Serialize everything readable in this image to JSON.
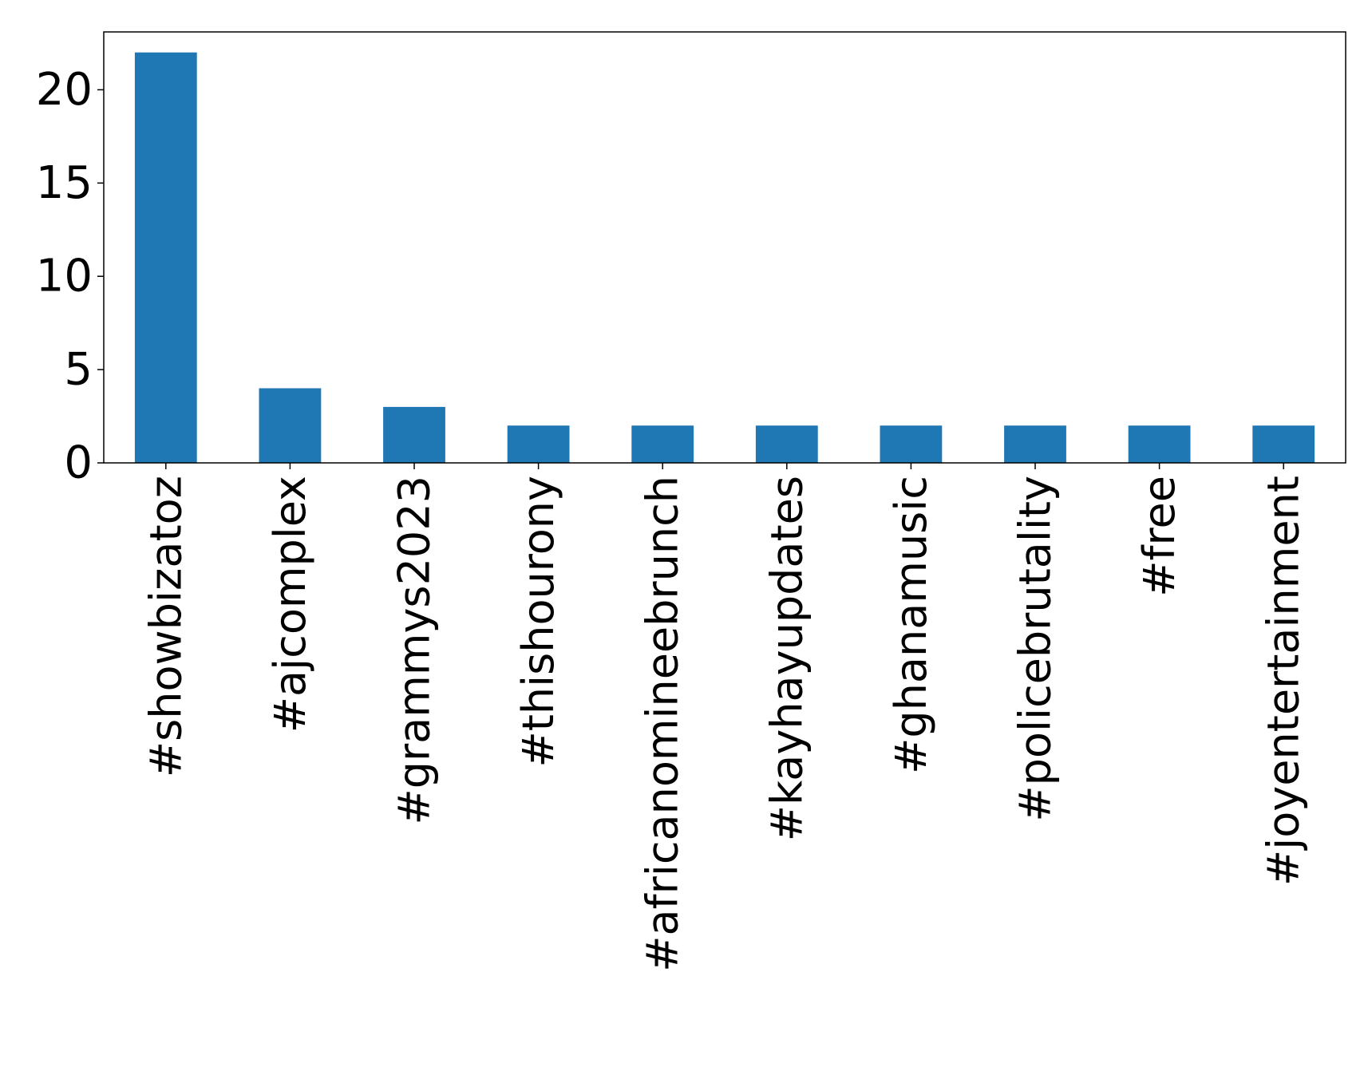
{
  "chart_data": {
    "type": "bar",
    "title": "",
    "xlabel": "",
    "ylabel": "",
    "categories": [
      "#showbizatoz",
      "#ajcomplex",
      "#grammys2023",
      "#thishourony",
      "#africanomineebrunch",
      "#kayhayupdates",
      "#ghanamusic",
      "#policebrutality",
      "#free",
      "#joyentertainment"
    ],
    "values": [
      22,
      4,
      3,
      2,
      2,
      2,
      2,
      2,
      2,
      2
    ],
    "ylim": [
      0,
      23.1
    ],
    "yticks": [
      0,
      5,
      10,
      15,
      20
    ],
    "grid": false,
    "legend": "none",
    "bar_color": "#1f77b4"
  }
}
